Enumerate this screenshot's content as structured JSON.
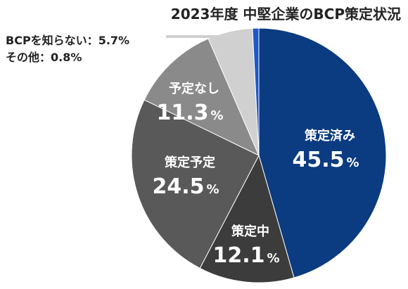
{
  "title": "2023年度 中堅企業のBCP策定状況",
  "annotations": [
    {
      "label": "BCPを知らない",
      "separator": "：",
      "value_text": "5.7%"
    },
    {
      "label": "その他",
      "separator": "：",
      "value_text": "0.8%"
    }
  ],
  "colors": {
    "策定済み": "#0b3b80",
    "策定中": "#3c3c3c",
    "策定予定": "#595959",
    "予定なし": "#8a8a8a",
    "BCPを知らない": "#d0d0d0",
    "その他": "#1e57c8"
  },
  "chart_data": {
    "type": "pie",
    "title": "2023年度 中堅企業のBCP策定状況",
    "unit": "%",
    "slices": [
      {
        "label": "策定済み",
        "value": 45.5,
        "value_text": "45.5"
      },
      {
        "label": "策定中",
        "value": 12.1,
        "value_text": "12.1"
      },
      {
        "label": "策定予定",
        "value": 24.5,
        "value_text": "24.5"
      },
      {
        "label": "予定なし",
        "value": 11.3,
        "value_text": "11.3"
      },
      {
        "label": "BCPを知らない",
        "value": 5.7,
        "value_text": "5.7"
      },
      {
        "label": "その他",
        "value": 0.8,
        "value_text": "0.8"
      }
    ],
    "start": "top",
    "direction": "clockwise"
  }
}
